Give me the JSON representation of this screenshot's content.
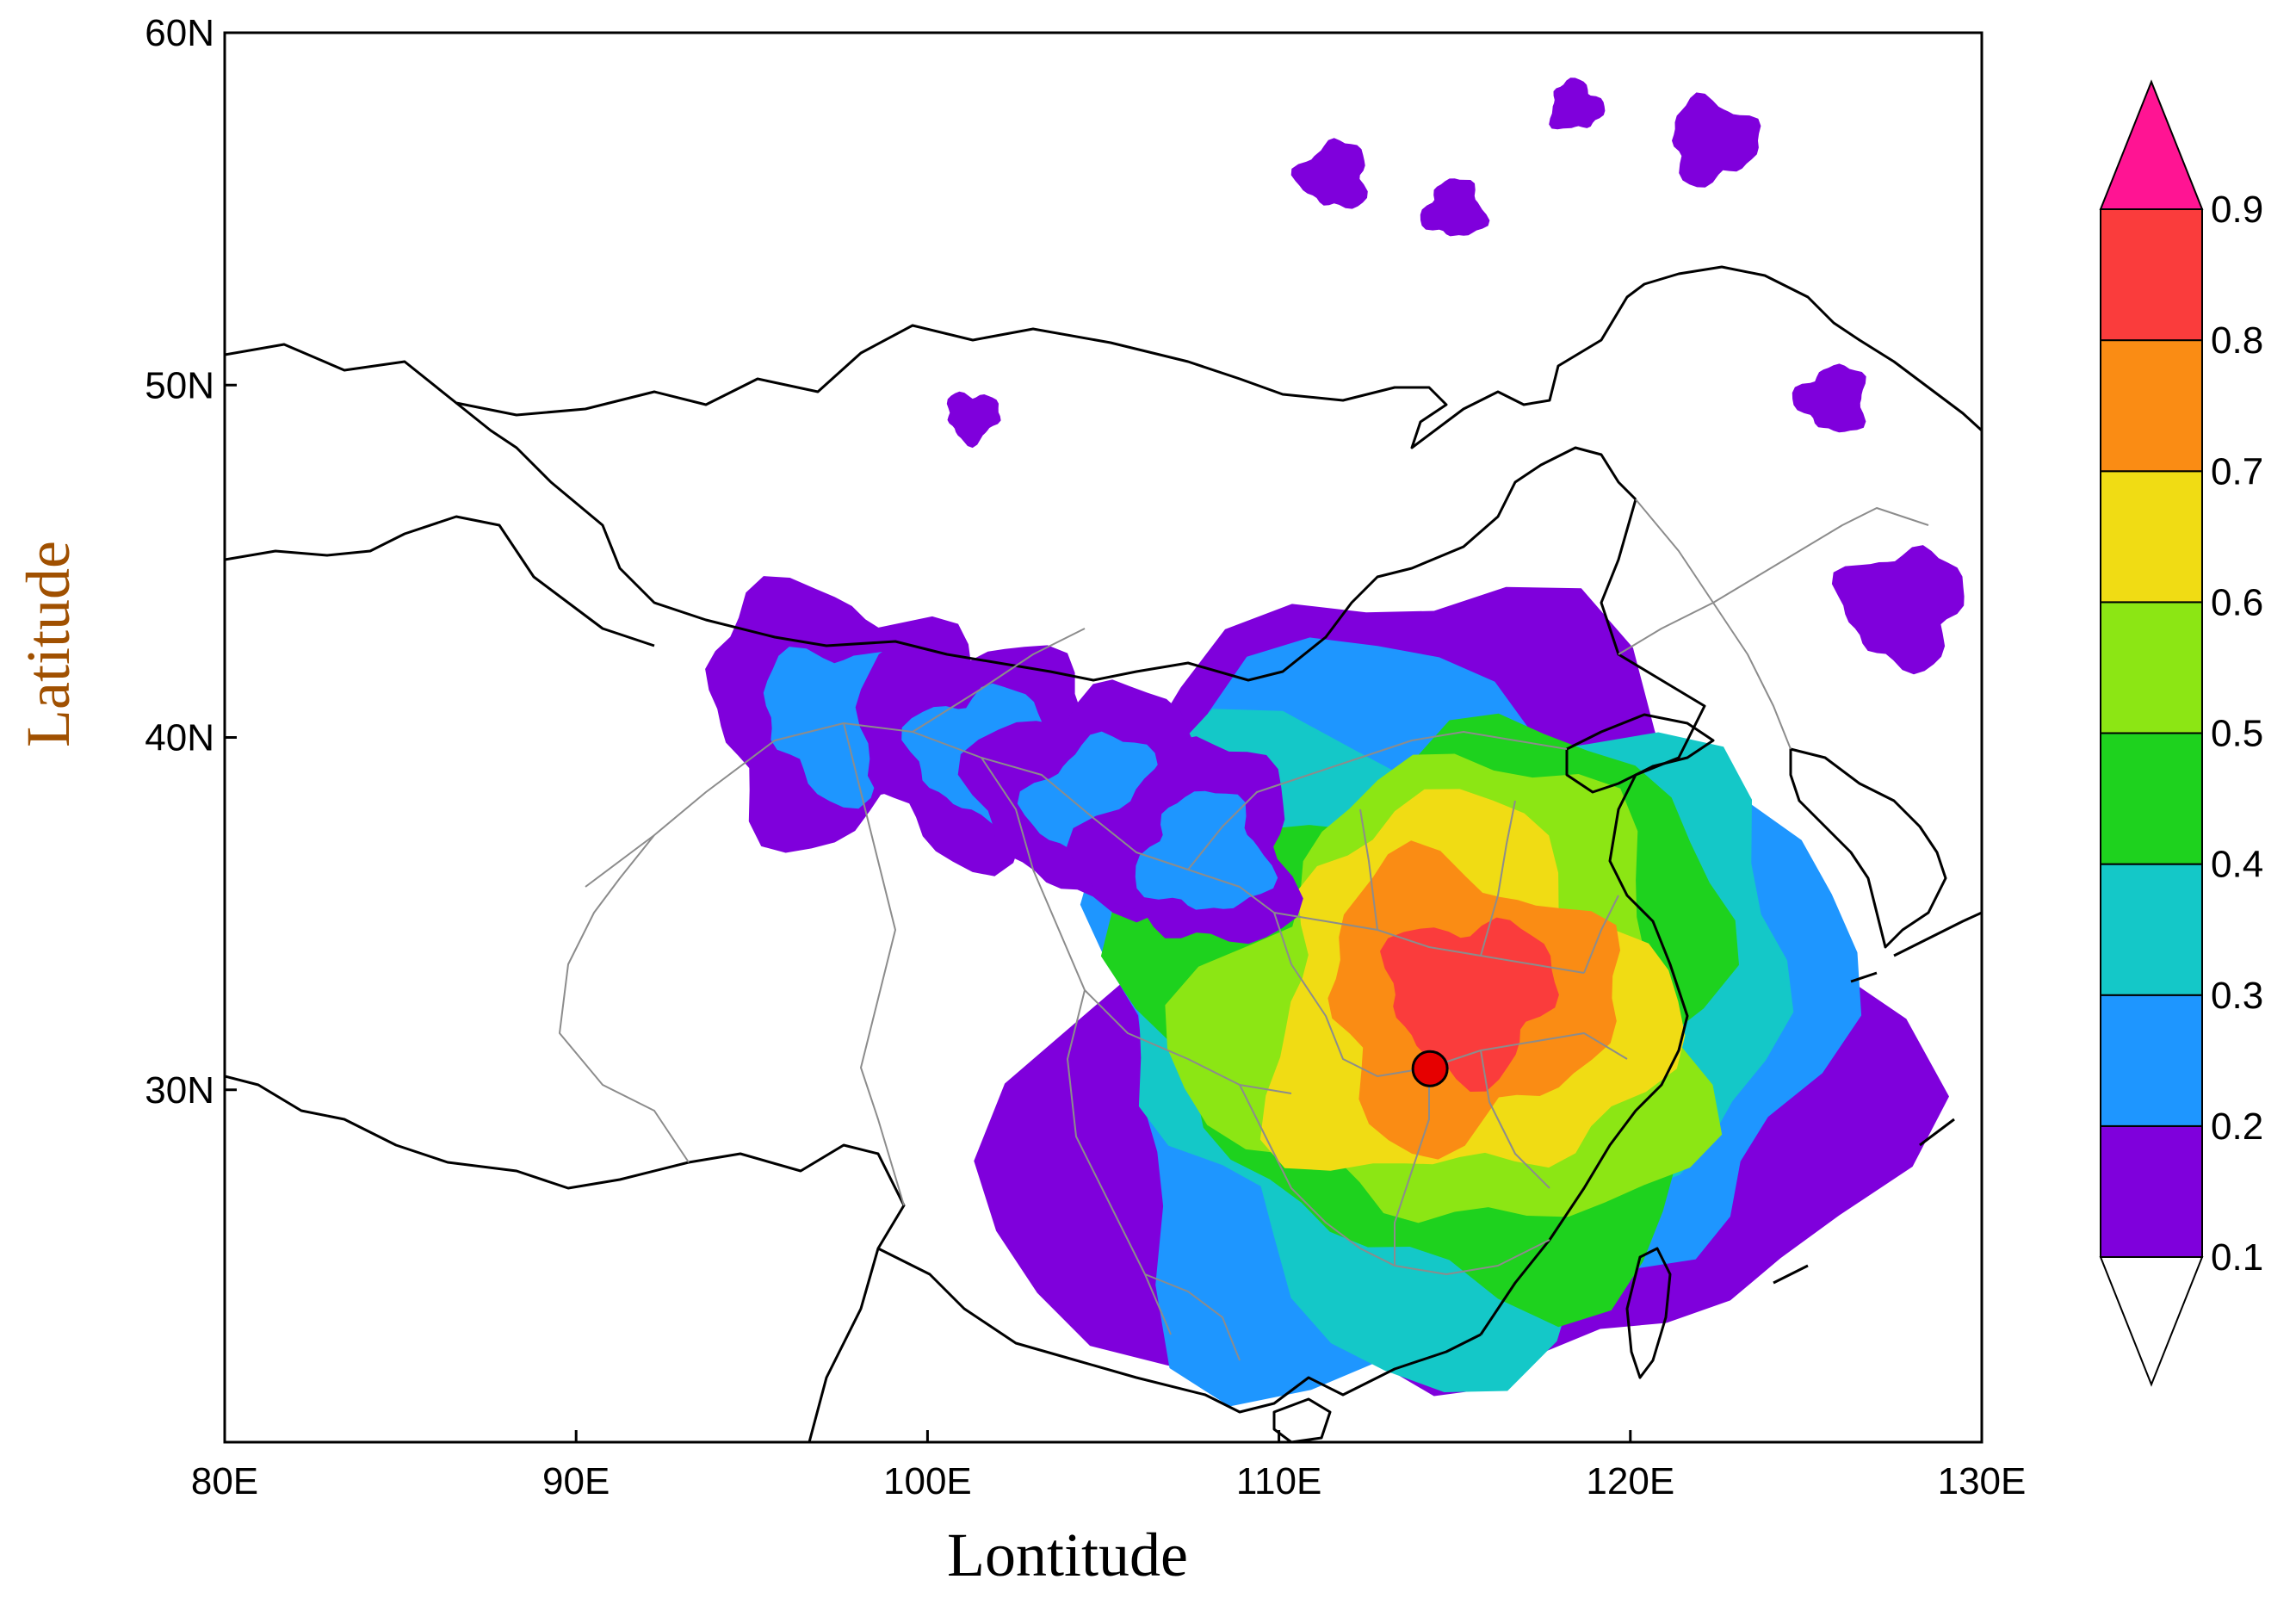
{
  "chart_data": {
    "type": "heatmap",
    "title": "",
    "xlabel": "Lontitude",
    "ylabel": "Latitude",
    "xlim": [
      80,
      130
    ],
    "ylim": [
      20,
      60
    ],
    "x_ticks": [
      80,
      90,
      100,
      110,
      120,
      130
    ],
    "x_tick_labels": [
      "80E",
      "90E",
      "100E",
      "110E",
      "120E",
      "130E"
    ],
    "y_ticks": [
      30,
      40,
      50,
      60
    ],
    "y_tick_labels": [
      "30N",
      "40N",
      "50N",
      "60N"
    ],
    "colorbar": {
      "levels": [
        0.1,
        0.2,
        0.3,
        0.4,
        0.5,
        0.6,
        0.7,
        0.8,
        0.9
      ],
      "level_labels": [
        "0.1",
        "0.2",
        "0.3",
        "0.4",
        "0.5",
        "0.6",
        "0.7",
        "0.8",
        "0.9"
      ],
      "colors": [
        "#7f00dc",
        "#1e96ff",
        "#14c8c8",
        "#1ed21e",
        "#8ce614",
        "#f0dc14",
        "#fa8c14",
        "#fa3c3c"
      ],
      "under_color": "#ffffff",
      "over_color": "#ff1493"
    },
    "marker": {
      "lon": 114.3,
      "lat": 30.6,
      "color": "#e60000"
    },
    "plume_center": {
      "lon": 115.0,
      "lat": 32.5
    }
  },
  "colors": {
    "country_border": "#000000",
    "province_border": "#8c8c8c",
    "axis_title": "#a05000"
  }
}
